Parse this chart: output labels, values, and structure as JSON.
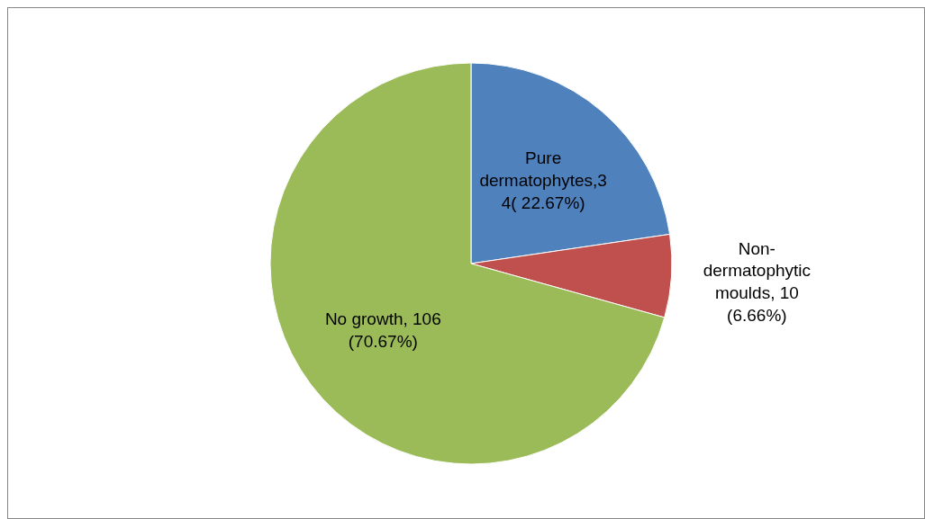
{
  "chart_data": {
    "type": "pie",
    "categories": [
      "Pure dermatophytes",
      "Non-dermatophytic moulds",
      "No growth"
    ],
    "values": [
      34,
      10,
      106
    ],
    "colors": [
      "#4f81bd",
      "#c0504d",
      "#9bbb59"
    ],
    "value_labels": [
      "34( 22.67%)",
      " 10 (6.66%)",
      " 106 (70.67%)"
    ],
    "legend": false
  }
}
